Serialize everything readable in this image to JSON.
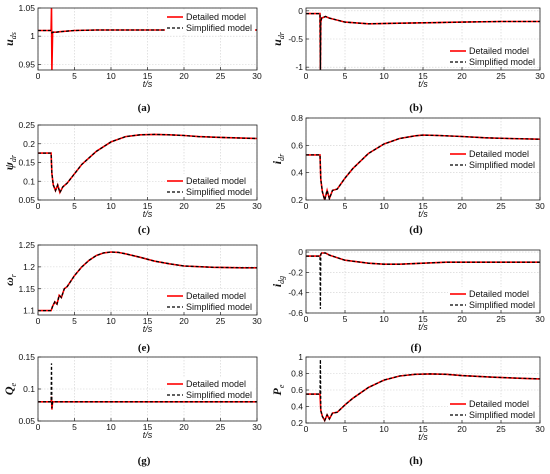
{
  "colors": {
    "detailed": "#ff0000",
    "simplified": "#000000"
  },
  "chart_data": [
    {
      "id": "a",
      "type": "line",
      "caption": "(a)",
      "ylabel_main": "u",
      "ylabel_sub": "ds",
      "xlabel": "t/s",
      "xlim": [
        0,
        30
      ],
      "ylim": [
        0.94,
        1.05
      ],
      "xticks": [
        0,
        5,
        10,
        15,
        20,
        25,
        30
      ],
      "yticks": [
        0.95,
        1,
        1.05
      ],
      "ytick_labels": [
        "0.95",
        "1",
        "1.05"
      ],
      "grid": true,
      "legend": "top-right",
      "series": [
        {
          "name": "Detailed model",
          "x": [
            0,
            1.8,
            1.85,
            1.9,
            2.0,
            2.5,
            3,
            5,
            8,
            12,
            16,
            20,
            25,
            30
          ],
          "y": [
            1.01,
            1.01,
            1.05,
            0.94,
            1.007,
            1.007,
            1.008,
            1.01,
            1.011,
            1.011,
            1.011,
            1.011,
            1.011,
            1.011
          ]
        },
        {
          "name": "Simplified model",
          "x": [
            0,
            1.8,
            1.9,
            2.0,
            2.5,
            3,
            5,
            8,
            12,
            16,
            20,
            25,
            30
          ],
          "y": [
            1.01,
            1.01,
            1.006,
            1.007,
            1.007,
            1.008,
            1.01,
            1.011,
            1.011,
            1.011,
            1.011,
            1.011,
            1.011
          ]
        }
      ]
    },
    {
      "id": "b",
      "type": "line",
      "caption": "(b)",
      "ylabel_main": "u",
      "ylabel_sub": "dr",
      "xlabel": "t/s",
      "xlim": [
        0,
        30
      ],
      "ylim": [
        -1.05,
        0.05
      ],
      "xticks": [
        0,
        5,
        10,
        15,
        20,
        25,
        30
      ],
      "yticks": [
        -1,
        -0.5,
        0
      ],
      "ytick_labels": [
        "-1",
        "-0.5",
        "0"
      ],
      "grid": true,
      "legend": "bottom-right",
      "series": [
        {
          "name": "Detailed model",
          "x": [
            0,
            1.8,
            1.85,
            1.9,
            2.0,
            2.5,
            3,
            5,
            8,
            12,
            16,
            20,
            25,
            30
          ],
          "y": [
            -0.05,
            -0.05,
            -1.05,
            -0.2,
            -0.13,
            -0.1,
            -0.13,
            -0.2,
            -0.23,
            -0.22,
            -0.21,
            -0.2,
            -0.19,
            -0.19
          ]
        },
        {
          "name": "Simplified model",
          "x": [
            0,
            1.8,
            1.85,
            1.9,
            2.0,
            2.5,
            3,
            5,
            8,
            12,
            16,
            20,
            25,
            30
          ],
          "y": [
            -0.05,
            -0.05,
            -1.05,
            -0.2,
            -0.13,
            -0.1,
            -0.13,
            -0.2,
            -0.23,
            -0.22,
            -0.21,
            -0.2,
            -0.19,
            -0.19
          ]
        }
      ]
    },
    {
      "id": "c",
      "type": "line",
      "caption": "(c)",
      "ylabel_main": "ψ",
      "ylabel_sub": "dr",
      "xlabel": "t/s",
      "xlim": [
        0,
        30
      ],
      "ylim": [
        0.05,
        0.25
      ],
      "xticks": [
        0,
        5,
        10,
        15,
        20,
        25,
        30
      ],
      "yticks": [
        0.05,
        0.1,
        0.15,
        0.2,
        0.25
      ],
      "ytick_labels": [
        "0.05",
        "0.1",
        "0.15",
        "0.2",
        "0.25"
      ],
      "grid": true,
      "legend": "bottom-right",
      "series": [
        {
          "name": "Detailed model",
          "x": [
            0,
            1.8,
            1.9,
            2.1,
            2.4,
            2.7,
            3.0,
            3.4,
            4,
            5,
            6,
            8,
            10,
            12,
            14,
            16,
            18,
            20,
            22,
            25,
            28,
            30
          ],
          "y": [
            0.175,
            0.175,
            0.12,
            0.09,
            0.075,
            0.09,
            0.07,
            0.085,
            0.095,
            0.12,
            0.145,
            0.18,
            0.205,
            0.219,
            0.224,
            0.225,
            0.224,
            0.222,
            0.219,
            0.217,
            0.215,
            0.214
          ]
        },
        {
          "name": "Simplified model",
          "x": [
            0,
            1.8,
            1.9,
            2.1,
            2.4,
            2.7,
            3.0,
            3.4,
            4,
            5,
            6,
            8,
            10,
            12,
            14,
            16,
            18,
            20,
            22,
            25,
            28,
            30
          ],
          "y": [
            0.175,
            0.175,
            0.12,
            0.09,
            0.075,
            0.09,
            0.07,
            0.085,
            0.095,
            0.12,
            0.145,
            0.18,
            0.205,
            0.219,
            0.224,
            0.225,
            0.224,
            0.222,
            0.219,
            0.217,
            0.215,
            0.214
          ]
        }
      ]
    },
    {
      "id": "d",
      "type": "line",
      "caption": "(d)",
      "ylabel_main": "i",
      "ylabel_sub": "dr",
      "xlabel": "t/s",
      "xlim": [
        0,
        30
      ],
      "ylim": [
        0.2,
        0.8
      ],
      "xticks": [
        0,
        5,
        10,
        15,
        20,
        25,
        30
      ],
      "yticks": [
        0.2,
        0.4,
        0.6,
        0.8
      ],
      "ytick_labels": [
        "0.2",
        "0.4",
        "0.6",
        "0.8"
      ],
      "grid": true,
      "legend": "center-right",
      "series": [
        {
          "name": "Detailed model",
          "x": [
            0,
            1.8,
            1.9,
            2.1,
            2.4,
            2.7,
            3.0,
            3.4,
            4,
            5,
            6,
            8,
            10,
            12,
            14,
            15,
            17,
            20,
            23,
            26,
            30
          ],
          "y": [
            0.53,
            0.53,
            0.35,
            0.26,
            0.2,
            0.27,
            0.21,
            0.27,
            0.28,
            0.36,
            0.43,
            0.54,
            0.61,
            0.65,
            0.67,
            0.675,
            0.672,
            0.665,
            0.655,
            0.65,
            0.645
          ]
        },
        {
          "name": "Simplified model",
          "x": [
            0,
            1.8,
            1.9,
            2.1,
            2.4,
            2.7,
            3.0,
            3.4,
            4,
            5,
            6,
            8,
            10,
            12,
            14,
            15,
            17,
            20,
            23,
            26,
            30
          ],
          "y": [
            0.53,
            0.53,
            0.35,
            0.26,
            0.2,
            0.27,
            0.21,
            0.27,
            0.28,
            0.36,
            0.43,
            0.54,
            0.61,
            0.65,
            0.67,
            0.675,
            0.672,
            0.665,
            0.655,
            0.65,
            0.645
          ]
        }
      ]
    },
    {
      "id": "e",
      "type": "line",
      "caption": "(e)",
      "ylabel_main": "ω",
      "ylabel_sub": "r",
      "xlabel": "t/s",
      "xlim": [
        0,
        30
      ],
      "ylim": [
        1.09,
        1.25
      ],
      "xticks": [
        0,
        5,
        10,
        15,
        20,
        25,
        30
      ],
      "yticks": [
        1.1,
        1.15,
        1.2,
        1.25
      ],
      "ytick_labels": [
        "1.1",
        "1.15",
        "1.2",
        "1.25"
      ],
      "grid": true,
      "legend": "bottom-right",
      "series": [
        {
          "name": "Detailed model",
          "x": [
            0,
            1.8,
            2.0,
            2.3,
            2.6,
            2.9,
            3.2,
            3.6,
            4,
            5,
            6,
            7,
            8,
            9,
            10,
            11,
            12,
            14,
            16,
            18,
            20,
            24,
            28,
            30
          ],
          "y": [
            1.1,
            1.1,
            1.11,
            1.12,
            1.115,
            1.135,
            1.13,
            1.15,
            1.155,
            1.18,
            1.2,
            1.215,
            1.226,
            1.232,
            1.234,
            1.233,
            1.23,
            1.222,
            1.213,
            1.207,
            1.202,
            1.199,
            1.198,
            1.198
          ]
        },
        {
          "name": "Simplified model",
          "x": [
            0,
            1.8,
            2.0,
            2.3,
            2.6,
            2.9,
            3.2,
            3.6,
            4,
            5,
            6,
            7,
            8,
            9,
            10,
            11,
            12,
            14,
            16,
            18,
            20,
            24,
            28,
            30
          ],
          "y": [
            1.1,
            1.1,
            1.11,
            1.12,
            1.115,
            1.135,
            1.13,
            1.15,
            1.155,
            1.18,
            1.2,
            1.215,
            1.226,
            1.232,
            1.234,
            1.233,
            1.23,
            1.222,
            1.213,
            1.207,
            1.202,
            1.199,
            1.198,
            1.198
          ]
        }
      ]
    },
    {
      "id": "f",
      "type": "line",
      "caption": "(f)",
      "ylabel_main": "i",
      "ylabel_sub": "dg",
      "xlabel": "t/s",
      "xlim": [
        0,
        30
      ],
      "ylim": [
        -0.6,
        0.02
      ],
      "xticks": [
        0,
        5,
        10,
        15,
        20,
        25,
        30
      ],
      "yticks": [
        -0.6,
        -0.4,
        -0.2,
        0
      ],
      "ytick_labels": [
        "-0.6",
        "-0.4",
        "-0.2",
        "0"
      ],
      "grid": true,
      "legend": "bottom-right",
      "series": [
        {
          "name": "Detailed model",
          "x": [
            0,
            1.8,
            2.0,
            2.5,
            3,
            5,
            8,
            10,
            12,
            15,
            18,
            22,
            26,
            30
          ],
          "y": [
            -0.04,
            -0.04,
            -0.01,
            -0.01,
            -0.03,
            -0.08,
            -0.11,
            -0.12,
            -0.12,
            -0.11,
            -0.1,
            -0.1,
            -0.1,
            -0.1
          ]
        },
        {
          "name": "Simplified model",
          "x": [
            0,
            1.8,
            1.85,
            1.9,
            2.0,
            2.5,
            3,
            5,
            8,
            10,
            12,
            15,
            18,
            22,
            26,
            30
          ],
          "y": [
            -0.04,
            -0.04,
            -0.56,
            -0.02,
            -0.01,
            -0.01,
            -0.03,
            -0.08,
            -0.11,
            -0.12,
            -0.12,
            -0.11,
            -0.1,
            -0.1,
            -0.1,
            -0.1
          ]
        }
      ]
    },
    {
      "id": "g",
      "type": "line",
      "caption": "(g)",
      "ylabel_main": "Q",
      "ylabel_sub": "e",
      "xlabel": "t/s",
      "xlim": [
        0,
        30
      ],
      "ylim": [
        0.05,
        0.15
      ],
      "xticks": [
        0,
        5,
        10,
        15,
        20,
        25,
        30
      ],
      "yticks": [
        0.05,
        0.1,
        0.15
      ],
      "ytick_labels": [
        "0.05",
        "0.1",
        "0.15"
      ],
      "grid": true,
      "legend": "center-right",
      "series": [
        {
          "name": "Detailed model",
          "x": [
            0,
            1.8,
            1.85,
            1.9,
            2.0,
            2.5,
            5,
            10,
            15,
            20,
            25,
            30
          ],
          "y": [
            0.08,
            0.08,
            0.088,
            0.068,
            0.08,
            0.08,
            0.08,
            0.08,
            0.08,
            0.08,
            0.08,
            0.08
          ]
        },
        {
          "name": "Simplified model",
          "x": [
            0,
            1.8,
            1.85,
            1.9,
            2.0,
            2.5,
            5,
            10,
            15,
            20,
            25,
            30
          ],
          "y": [
            0.08,
            0.08,
            0.14,
            0.07,
            0.08,
            0.08,
            0.08,
            0.08,
            0.08,
            0.08,
            0.08,
            0.08
          ]
        }
      ]
    },
    {
      "id": "h",
      "type": "line",
      "caption": "(h)",
      "ylabel_main": "P",
      "ylabel_sub": "e",
      "xlabel": "t/s",
      "xlim": [
        0,
        30
      ],
      "ylim": [
        0.2,
        1.0
      ],
      "xticks": [
        0,
        5,
        10,
        15,
        20,
        25,
        30
      ],
      "yticks": [
        0.2,
        0.4,
        0.6,
        0.8,
        1
      ],
      "ytick_labels": [
        "0.2",
        "0.4",
        "0.6",
        "0.8",
        "1"
      ],
      "grid": true,
      "legend": "bottom-right",
      "series": [
        {
          "name": "Detailed model",
          "x": [
            0,
            1.8,
            1.9,
            2.1,
            2.4,
            2.7,
            3.0,
            3.4,
            4,
            5,
            6,
            8,
            10,
            12,
            14,
            16,
            18,
            20,
            24,
            28,
            30
          ],
          "y": [
            0.55,
            0.55,
            0.35,
            0.28,
            0.23,
            0.3,
            0.25,
            0.32,
            0.33,
            0.42,
            0.5,
            0.63,
            0.72,
            0.77,
            0.79,
            0.795,
            0.79,
            0.775,
            0.755,
            0.74,
            0.735
          ]
        },
        {
          "name": "Simplified model",
          "x": [
            0,
            1.8,
            1.85,
            1.9,
            2.1,
            2.4,
            2.7,
            3.0,
            3.4,
            4,
            5,
            6,
            8,
            10,
            12,
            14,
            16,
            18,
            20,
            24,
            28,
            30
          ],
          "y": [
            0.55,
            0.55,
            0.97,
            0.35,
            0.28,
            0.23,
            0.3,
            0.25,
            0.32,
            0.33,
            0.42,
            0.5,
            0.63,
            0.72,
            0.77,
            0.79,
            0.795,
            0.79,
            0.775,
            0.755,
            0.74,
            0.735
          ]
        }
      ]
    }
  ]
}
